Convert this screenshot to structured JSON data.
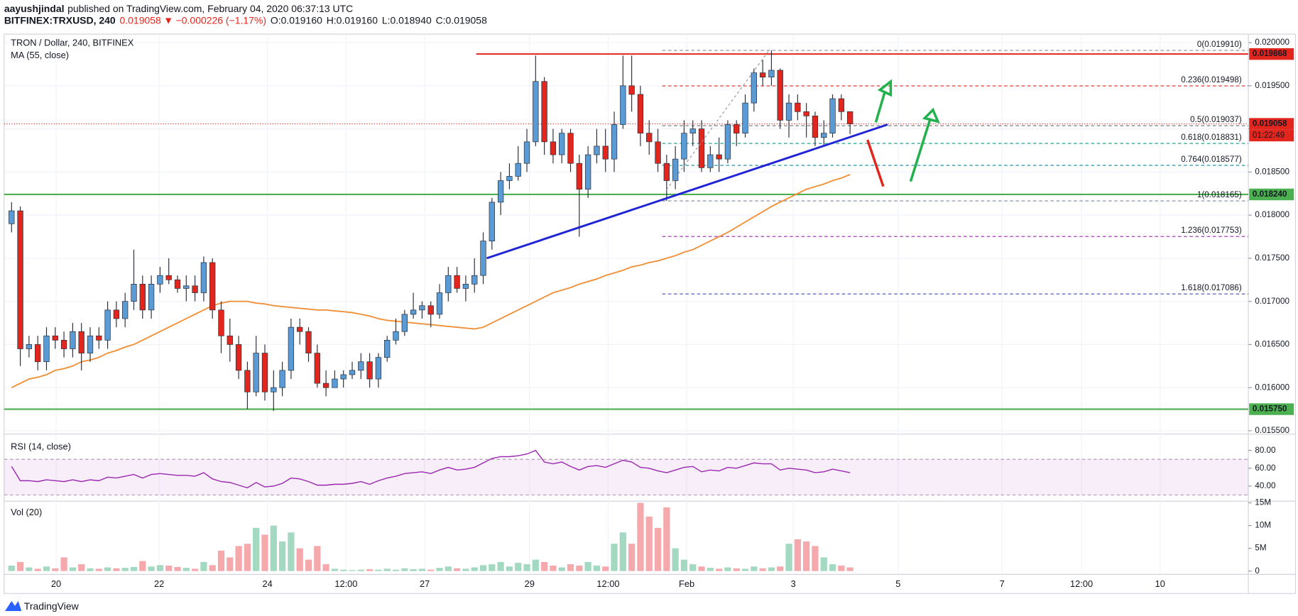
{
  "header": {
    "author": "aayushjindal",
    "published": "published on TradingView.com, February 04, 2020 06:37:13 UTC",
    "symbol": "BITFINEX:TRXUSD, 240",
    "last": "0.019058",
    "change": "−0.000226 (−1.17%)",
    "open": "O:0.019160",
    "high": "H:0.019160",
    "low": "L:0.018940",
    "close": "C:0.019058"
  },
  "footer": {
    "brand": "TradingView"
  },
  "chart_data": [
    {
      "type": "candlestick",
      "title": "TRON / Dollar, 240, BITFINEX",
      "xlim": [
        -0.85,
        141.6
      ],
      "xticks": [
        {
          "value": 5.1,
          "label": "20"
        },
        {
          "value": 16.9,
          "label": "22"
        },
        {
          "value": 29.3,
          "label": "24"
        },
        {
          "value": 38.3,
          "label": "12:00"
        },
        {
          "value": 47.3,
          "label": "27"
        },
        {
          "value": 59.3,
          "label": "29"
        },
        {
          "value": 68.3,
          "label": "12:00"
        },
        {
          "value": 77.3,
          "label": "Feb"
        },
        {
          "value": 89.5,
          "label": "3"
        },
        {
          "value": 101.5,
          "label": "5"
        },
        {
          "value": 113.4,
          "label": "7"
        },
        {
          "value": 122.5,
          "label": "12:00"
        },
        {
          "value": 131.5,
          "label": "10"
        }
      ],
      "ylim": [
        0.015485,
        0.020089
      ],
      "yticks": [
        {
          "value": 0.02,
          "label": "0.020000"
        },
        {
          "value": 0.0195,
          "label": "0.019500"
        },
        {
          "value": 0.019,
          "label": "0.019000"
        },
        {
          "value": 0.0185,
          "label": "0.018500"
        },
        {
          "value": 0.018,
          "label": "0.018000"
        },
        {
          "value": 0.0175,
          "label": "0.017500"
        },
        {
          "value": 0.017,
          "label": "0.017000"
        },
        {
          "value": 0.0165,
          "label": "0.016500"
        },
        {
          "value": 0.016,
          "label": "0.016000"
        },
        {
          "value": 0.0155,
          "label": "0.015500"
        }
      ],
      "grid": true,
      "up_color": "#5b9bd5",
      "down_color": "#e3261d",
      "wick_color": "#2a2e39",
      "open": [
        0.0179,
        0.01805,
        0.01645,
        0.0165,
        0.0163,
        0.0166,
        0.01655,
        0.01645,
        0.01665,
        0.0164,
        0.0166,
        0.01655,
        0.0169,
        0.0168,
        0.017,
        0.0172,
        0.0169,
        0.0172,
        0.0173,
        0.01725,
        0.01715,
        0.01718,
        0.0171,
        0.01745,
        0.0169,
        0.0166,
        0.0165,
        0.0162,
        0.01595,
        0.0164,
        0.01595,
        0.016,
        0.0162,
        0.0167,
        0.01665,
        0.0164,
        0.01605,
        0.016,
        0.0161,
        0.01615,
        0.0162,
        0.0163,
        0.0161,
        0.01635,
        0.01655,
        0.01665,
        0.01685,
        0.0169,
        0.01695,
        0.01685,
        0.0171,
        0.0173,
        0.01715,
        0.0172,
        0.0173,
        0.0177,
        0.01815,
        0.0184,
        0.01845,
        0.0186,
        0.01885,
        0.01955,
        0.01885,
        0.0187,
        0.01895,
        0.0186,
        0.0183,
        0.0187,
        0.0188,
        0.01865,
        0.01905,
        0.0195,
        0.0194,
        0.01895,
        0.01885,
        0.0186,
        0.0184,
        0.01865,
        0.01895,
        0.019,
        0.01855,
        0.0187,
        0.01865,
        0.01905,
        0.01895,
        0.0193,
        0.01965,
        0.0196,
        0.01968,
        0.0191,
        0.0193,
        0.0192,
        0.01915,
        0.0189,
        0.01895,
        0.01935,
        0.0192
      ],
      "high": [
        0.01815,
        0.0181,
        0.0166,
        0.0166,
        0.0167,
        0.0167,
        0.01665,
        0.01675,
        0.01675,
        0.0167,
        0.0167,
        0.017,
        0.017,
        0.0171,
        0.0176,
        0.0173,
        0.0173,
        0.0174,
        0.0175,
        0.0173,
        0.0173,
        0.0173,
        0.01752,
        0.0175,
        0.017,
        0.0168,
        0.0166,
        0.0163,
        0.0166,
        0.0165,
        0.0162,
        0.0163,
        0.0168,
        0.0168,
        0.0167,
        0.0165,
        0.0162,
        0.0162,
        0.0162,
        0.0163,
        0.0164,
        0.0164,
        0.0164,
        0.0166,
        0.0168,
        0.0169,
        0.0171,
        0.017,
        0.017,
        0.0172,
        0.0174,
        0.0174,
        0.0173,
        0.0175,
        0.0178,
        0.0182,
        0.0185,
        0.0186,
        0.0188,
        0.019,
        0.01985,
        0.0196,
        0.019,
        0.019,
        0.019,
        0.0187,
        0.0188,
        0.019,
        0.019,
        0.0192,
        0.01985,
        0.01985,
        0.0195,
        0.0191,
        0.019,
        0.0187,
        0.0188,
        0.0191,
        0.0191,
        0.0191,
        0.0188,
        0.0189,
        0.0191,
        0.0191,
        0.0194,
        0.0197,
        0.0198,
        0.01991,
        0.0197,
        0.0194,
        0.0194,
        0.0193,
        0.0192,
        0.0191,
        0.0194,
        0.0194,
        0.0192
      ],
      "low": [
        0.0178,
        0.01625,
        0.01635,
        0.0162,
        0.0162,
        0.01645,
        0.01635,
        0.01635,
        0.0162,
        0.0163,
        0.01645,
        0.01645,
        0.0167,
        0.0167,
        0.0169,
        0.0168,
        0.0168,
        0.0171,
        0.0172,
        0.0171,
        0.017,
        0.017,
        0.017,
        0.0168,
        0.0164,
        0.0163,
        0.0161,
        0.01575,
        0.0159,
        0.01585,
        0.01573,
        0.0159,
        0.0161,
        0.0165,
        0.0163,
        0.016,
        0.0159,
        0.016,
        0.016,
        0.0161,
        0.0161,
        0.016,
        0.016,
        0.0163,
        0.0165,
        0.0166,
        0.0168,
        0.0168,
        0.0167,
        0.0168,
        0.017,
        0.0171,
        0.017,
        0.0171,
        0.0172,
        0.0176,
        0.018,
        0.0183,
        0.0184,
        0.0185,
        0.0188,
        0.0187,
        0.0186,
        0.0186,
        0.0185,
        0.01775,
        0.0182,
        0.0186,
        0.0185,
        0.0185,
        0.019,
        0.0192,
        0.0188,
        0.0187,
        0.0185,
        0.018165,
        0.0183,
        0.0185,
        0.0188,
        0.0185,
        0.0185,
        0.0185,
        0.0186,
        0.0188,
        0.0189,
        0.0192,
        0.0195,
        0.0195,
        0.019,
        0.0189,
        0.0191,
        0.0189,
        0.0188,
        0.0188,
        0.0189,
        0.0191,
        0.01894
      ],
      "close": [
        0.01805,
        0.01645,
        0.0165,
        0.0163,
        0.0166,
        0.01655,
        0.01645,
        0.01665,
        0.0164,
        0.0166,
        0.01655,
        0.0169,
        0.0168,
        0.017,
        0.0172,
        0.0169,
        0.0172,
        0.0173,
        0.01725,
        0.01715,
        0.01718,
        0.0171,
        0.01745,
        0.0169,
        0.0166,
        0.0165,
        0.0162,
        0.01595,
        0.0164,
        0.01595,
        0.016,
        0.0162,
        0.0167,
        0.01665,
        0.0164,
        0.01605,
        0.016,
        0.0161,
        0.01615,
        0.0162,
        0.0163,
        0.0161,
        0.01635,
        0.01655,
        0.01665,
        0.01685,
        0.0169,
        0.01695,
        0.01685,
        0.0171,
        0.0173,
        0.01715,
        0.0172,
        0.0173,
        0.0177,
        0.01815,
        0.0184,
        0.01845,
        0.0186,
        0.01885,
        0.01955,
        0.01885,
        0.0187,
        0.01895,
        0.0186,
        0.0183,
        0.0187,
        0.0188,
        0.01865,
        0.01905,
        0.0195,
        0.0194,
        0.01895,
        0.01885,
        0.0186,
        0.0184,
        0.01865,
        0.01895,
        0.019,
        0.01855,
        0.0187,
        0.01865,
        0.01905,
        0.01895,
        0.0193,
        0.01965,
        0.0196,
        0.01968,
        0.0191,
        0.0193,
        0.0192,
        0.01915,
        0.0189,
        0.01895,
        0.01935,
        0.0192,
        0.019058
      ],
      "series": [
        {
          "name": "MA (55, close)",
          "color": "#f0913a",
          "values": [
            0.016,
            0.01605,
            0.0161,
            0.01612,
            0.01615,
            0.0162,
            0.01622,
            0.01625,
            0.0163,
            0.01632,
            0.01635,
            0.0164,
            0.01643,
            0.01647,
            0.0165,
            0.01655,
            0.0166,
            0.01665,
            0.0167,
            0.01675,
            0.0168,
            0.01685,
            0.0169,
            0.01695,
            0.01698,
            0.017,
            0.017,
            0.017,
            0.01698,
            0.01697,
            0.01695,
            0.01694,
            0.01693,
            0.01692,
            0.01691,
            0.0169,
            0.0169,
            0.01689,
            0.01688,
            0.01687,
            0.01685,
            0.01683,
            0.0168,
            0.01678,
            0.01677,
            0.01676,
            0.01675,
            0.01674,
            0.01673,
            0.01672,
            0.01671,
            0.0167,
            0.01669,
            0.01668,
            0.0167,
            0.01675,
            0.0168,
            0.01685,
            0.0169,
            0.01695,
            0.017,
            0.01705,
            0.0171,
            0.01713,
            0.01716,
            0.0172,
            0.01723,
            0.01726,
            0.0173,
            0.01733,
            0.01736,
            0.0174,
            0.01742,
            0.01745,
            0.01747,
            0.0175,
            0.01753,
            0.01757,
            0.0176,
            0.01765,
            0.0177,
            0.01775,
            0.0178,
            0.01786,
            0.01792,
            0.01798,
            0.01804,
            0.0181,
            0.01815,
            0.0182,
            0.01825,
            0.0183,
            0.01833,
            0.01836,
            0.0184,
            0.01843,
            0.01847
          ]
        }
      ],
      "levels": [
        {
          "value": 0.019868,
          "label": "0.019868",
          "color": "#e3261d",
          "start": 53.2
        },
        {
          "value": 0.01824,
          "label": "0.018240",
          "color": "#4caf50"
        },
        {
          "value": 0.01575,
          "label": "0.015750",
          "color": "#4caf50"
        }
      ],
      "fib_start": 74.5,
      "fib_levels": [
        {
          "value": 0.01991,
          "label": "0(0.019910)",
          "color": "#9598a1"
        },
        {
          "value": 0.019498,
          "label": "0.236(0.019498)",
          "color": "#e3261d"
        },
        {
          "value": 0.019037,
          "label": "0.5(0.019037)",
          "color": "#787b86"
        },
        {
          "value": 0.018831,
          "label": "0.618(0.018831)",
          "color": "#26a69a"
        },
        {
          "value": 0.018577,
          "label": "0.764(0.018577)",
          "color": "#2196a3"
        },
        {
          "value": 0.018165,
          "label": "1(0.018165)",
          "color": "#7e8aa0"
        },
        {
          "value": 0.017753,
          "label": "1.236(0.017753)",
          "color": "#9c27b0"
        },
        {
          "value": 0.017086,
          "label": "1.618(0.017086)",
          "color": "#3f51b5"
        }
      ],
      "last_price": {
        "value": 0.019058,
        "label": "0.019058",
        "countdown": "01:22:49",
        "color": "#e3261d"
      },
      "trend_line": {
        "x": [
          54.4,
          100.3
        ],
        "y": [
          0.0175,
          0.01905
        ],
        "color": "#1f24d6"
      }
    },
    {
      "type": "line",
      "title": "RSI (14, close)",
      "color": "#9c27b0",
      "ylim": [
        24,
        96
      ],
      "yticks": [
        {
          "value": 80,
          "label": "80.00"
        },
        {
          "value": 60,
          "label": "60.00"
        },
        {
          "value": 40,
          "label": "40.00"
        }
      ],
      "band": [
        30,
        70
      ],
      "values": [
        62,
        46,
        46,
        45,
        47,
        46,
        45,
        47,
        45,
        47,
        46,
        50,
        49,
        51,
        53,
        49,
        53,
        54,
        53,
        52,
        52,
        51,
        55,
        48,
        45,
        44,
        41,
        38,
        44,
        39,
        40,
        43,
        49,
        48,
        45,
        41,
        41,
        42,
        42,
        43,
        45,
        42,
        46,
        49,
        51,
        54,
        55,
        56,
        54,
        58,
        61,
        58,
        59,
        61,
        66,
        71,
        73,
        73,
        74,
        76,
        80,
        67,
        65,
        67,
        62,
        58,
        62,
        63,
        61,
        65,
        69,
        67,
        61,
        60,
        57,
        55,
        58,
        61,
        62,
        56,
        58,
        57,
        61,
        60,
        63,
        66,
        65,
        65,
        58,
        60,
        59,
        58,
        55,
        56,
        59,
        57,
        55
      ]
    },
    {
      "type": "bar",
      "title": "Vol (20)",
      "up_color": "#a3d9c1",
      "down_color": "#f5a9ad",
      "ylim": [
        0,
        15200000
      ],
      "yticks": [
        {
          "value": 15000000,
          "label": "15M"
        },
        {
          "value": 10000000,
          "label": "10M"
        },
        {
          "value": 5000000,
          "label": "5M"
        },
        0
      ],
      "values": [
        1200000,
        2000000,
        800000,
        500000,
        1000000,
        600000,
        3000000,
        800000,
        1500000,
        600000,
        500000,
        800000,
        600000,
        700000,
        900000,
        2200000,
        1000000,
        1300000,
        1200000,
        900000,
        700000,
        500000,
        2000000,
        1300000,
        4500000,
        3000000,
        5500000,
        6000000,
        9500000,
        8000000,
        10000000,
        6500000,
        8500000,
        5000000,
        2500000,
        5500000,
        1500000,
        500000,
        300000,
        200000,
        300000,
        400000,
        300000,
        500000,
        300000,
        600000,
        400000,
        500000,
        300000,
        700000,
        1000000,
        600000,
        500000,
        800000,
        1300000,
        1500000,
        2000000,
        1000000,
        1800000,
        1500000,
        2500000,
        2000000,
        1200000,
        800000,
        1500000,
        1200000,
        2000000,
        1200000,
        1000000,
        6000000,
        8500000,
        6000000,
        15000000,
        12000000,
        9500000,
        14000000,
        5000000,
        2500000,
        1500000,
        1000000,
        700000,
        500000,
        800000,
        600000,
        500000,
        1000000,
        600000,
        800000,
        1000000,
        6000000,
        7000000,
        6500000,
        5500000,
        3000000,
        1500000,
        1200000,
        800000
      ]
    }
  ]
}
